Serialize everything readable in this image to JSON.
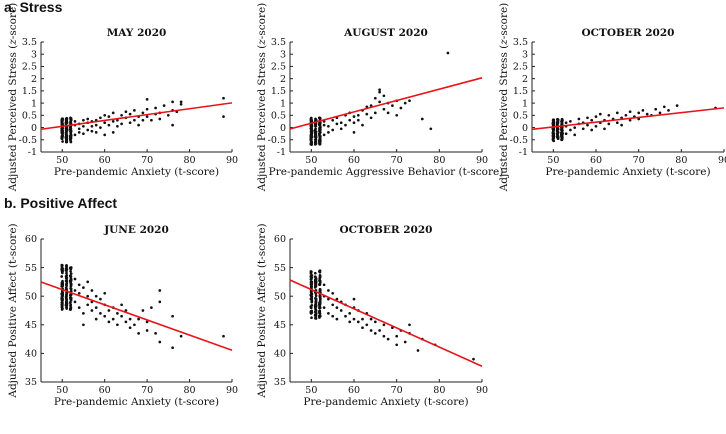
{
  "sections": {
    "a": "a. Stress",
    "b": "b. Positive Affect"
  },
  "chart_data": [
    {
      "type": "scatter",
      "section": "a",
      "title": "MAY 2020",
      "xlabel": "Pre-pandemic Anxiety (t-score)",
      "ylabel_pre": "Adjusted Perceived Stress (",
      "ylabel_em": "z",
      "ylabel_post": "-score)",
      "xlim": [
        45,
        90
      ],
      "ylim": [
        -1,
        3.5
      ],
      "xticks": [
        50,
        60,
        70,
        80,
        90
      ],
      "yticks": [
        -1,
        -0.5,
        0,
        0.5,
        1,
        1.5,
        2,
        2.5,
        3,
        3.5
      ],
      "fit": {
        "intercept": -1.15,
        "slope": 0.024
      },
      "cluster": {
        "xmin": 50,
        "xmax": 52,
        "ymin": -0.6,
        "ymax": 0.4,
        "n": 170
      },
      "points": [
        [
          53,
          -0.3
        ],
        [
          53,
          0.1
        ],
        [
          53,
          0.25
        ],
        [
          54,
          -0.2
        ],
        [
          54,
          0.15
        ],
        [
          54,
          -0.05
        ],
        [
          55,
          0.05
        ],
        [
          55,
          -0.25
        ],
        [
          55,
          0.3
        ],
        [
          56,
          0.2
        ],
        [
          56,
          -0.1
        ],
        [
          56,
          0.35
        ],
        [
          57,
          0.05
        ],
        [
          57,
          -0.15
        ],
        [
          57,
          0.25
        ],
        [
          58,
          0.1
        ],
        [
          58,
          0.3
        ],
        [
          58,
          -0.2
        ],
        [
          59,
          0.0
        ],
        [
          59,
          0.4
        ],
        [
          60,
          0.2
        ],
        [
          60,
          -0.3
        ],
        [
          60,
          0.5
        ],
        [
          61,
          0.1
        ],
        [
          61,
          0.45
        ],
        [
          62,
          0.25
        ],
        [
          62,
          0.6
        ],
        [
          62,
          -0.2
        ],
        [
          63,
          0.3
        ],
        [
          63,
          0.05
        ],
        [
          64,
          0.5
        ],
        [
          64,
          0.15
        ],
        [
          65,
          0.4
        ],
        [
          65,
          0.65
        ],
        [
          66,
          0.2
        ],
        [
          66,
          0.55
        ],
        [
          67,
          0.7
        ],
        [
          67,
          0.3
        ],
        [
          68,
          0.45
        ],
        [
          68,
          0.1
        ],
        [
          69,
          0.6
        ],
        [
          69,
          0.3
        ],
        [
          70,
          0.75
        ],
        [
          70,
          0.45
        ],
        [
          70,
          1.15
        ],
        [
          71,
          0.3
        ],
        [
          72,
          0.55
        ],
        [
          72,
          0.8
        ],
        [
          73,
          0.35
        ],
        [
          73,
          0.6
        ],
        [
          74,
          0.9
        ],
        [
          75,
          0.5
        ],
        [
          76,
          0.1
        ],
        [
          76,
          0.7
        ],
        [
          76,
          1.05
        ],
        [
          77,
          0.65
        ],
        [
          78,
          0.95
        ],
        [
          78,
          1.05
        ],
        [
          88,
          1.2
        ],
        [
          88,
          0.45
        ]
      ]
    },
    {
      "type": "scatter",
      "section": "a",
      "title": "AUGUST 2020",
      "xlabel": "Pre-pandemic Aggressive Behavior (t-score)",
      "ylabel_pre": "Adjusted Perceived Stress (",
      "ylabel_em": "z",
      "ylabel_post": "-score)",
      "xlim": [
        45,
        90
      ],
      "ylim": [
        -1,
        3.5
      ],
      "xticks": [
        50,
        60,
        70,
        80,
        90
      ],
      "yticks": [
        -1,
        -0.5,
        0,
        0.5,
        1,
        1.5,
        2,
        2.5,
        3,
        3.5
      ],
      "fit": {
        "intercept": -2.15,
        "slope": 0.0465
      },
      "cluster": {
        "xmin": 50,
        "xmax": 52,
        "ymin": -0.7,
        "ymax": 0.4,
        "n": 170
      },
      "points": [
        [
          53,
          -0.3
        ],
        [
          53,
          0.1
        ],
        [
          53,
          0.25
        ],
        [
          54,
          -0.2
        ],
        [
          54,
          0.05
        ],
        [
          55,
          0.3
        ],
        [
          55,
          -0.1
        ],
        [
          56,
          0.15
        ],
        [
          56,
          0.4
        ],
        [
          57,
          0.2
        ],
        [
          57,
          -0.05
        ],
        [
          58,
          0.5
        ],
        [
          58,
          0.1
        ],
        [
          59,
          0.3
        ],
        [
          59,
          0.6
        ],
        [
          60,
          0.2
        ],
        [
          60,
          0.45
        ],
        [
          60,
          -0.2
        ],
        [
          61,
          0.5
        ],
        [
          61,
          0.3
        ],
        [
          62,
          0.7
        ],
        [
          62,
          0.1
        ],
        [
          63,
          0.55
        ],
        [
          63,
          0.85
        ],
        [
          64,
          0.4
        ],
        [
          64,
          0.9
        ],
        [
          65,
          0.6
        ],
        [
          65,
          1.2
        ],
        [
          66,
          1.45
        ],
        [
          66,
          1.55
        ],
        [
          66,
          1.05
        ],
        [
          67,
          1.3
        ],
        [
          67,
          0.75
        ],
        [
          68,
          1.0
        ],
        [
          68,
          0.6
        ],
        [
          69,
          0.9
        ],
        [
          70,
          1.1
        ],
        [
          70,
          0.5
        ],
        [
          71,
          0.8
        ],
        [
          72,
          1.0
        ],
        [
          73,
          1.1
        ],
        [
          76,
          0.35
        ],
        [
          78,
          -0.05
        ],
        [
          82,
          3.05
        ]
      ]
    },
    {
      "type": "scatter",
      "section": "a",
      "title": "OCTOBER 2020",
      "xlabel": "Pre-pandemic Anxiety (t-score)",
      "ylabel_pre": "Adjusted Perceived Stress (",
      "ylabel_em": "z",
      "ylabel_post": "-score)",
      "xlim": [
        45,
        90
      ],
      "ylim": [
        -1,
        3.5
      ],
      "xticks": [
        50,
        60,
        70,
        80,
        90
      ],
      "yticks": [
        -1,
        -0.5,
        0,
        0.5,
        1,
        1.5,
        2,
        2.5,
        3,
        3.5
      ],
      "fit": {
        "intercept": -0.95,
        "slope": 0.0195
      },
      "cluster": {
        "xmin": 50,
        "xmax": 52,
        "ymin": -0.55,
        "ymax": 0.35,
        "n": 160
      },
      "points": [
        [
          53,
          -0.25
        ],
        [
          53,
          0.05
        ],
        [
          53,
          0.2
        ],
        [
          54,
          -0.1
        ],
        [
          54,
          0.25
        ],
        [
          55,
          0.0
        ],
        [
          55,
          -0.3
        ],
        [
          56,
          0.15
        ],
        [
          56,
          0.35
        ],
        [
          57,
          -0.05
        ],
        [
          57,
          0.2
        ],
        [
          58,
          0.1
        ],
        [
          58,
          0.4
        ],
        [
          59,
          -0.1
        ],
        [
          59,
          0.3
        ],
        [
          60,
          0.05
        ],
        [
          60,
          0.45
        ],
        [
          61,
          0.2
        ],
        [
          61,
          0.55
        ],
        [
          62,
          0.3
        ],
        [
          62,
          -0.05
        ],
        [
          63,
          0.5
        ],
        [
          63,
          0.15
        ],
        [
          64,
          0.35
        ],
        [
          65,
          0.2
        ],
        [
          65,
          0.6
        ],
        [
          66,
          0.1
        ],
        [
          66,
          0.4
        ],
        [
          67,
          0.5
        ],
        [
          68,
          0.3
        ],
        [
          68,
          0.65
        ],
        [
          69,
          0.45
        ],
        [
          70,
          0.35
        ],
        [
          70,
          0.6
        ],
        [
          71,
          0.7
        ],
        [
          72,
          0.55
        ],
        [
          73,
          0.5
        ],
        [
          74,
          0.75
        ],
        [
          75,
          0.6
        ],
        [
          76,
          0.85
        ],
        [
          77,
          0.7
        ],
        [
          79,
          0.9
        ],
        [
          88,
          0.8
        ]
      ]
    },
    {
      "type": "scatter",
      "section": "b",
      "title": "JUNE 2020",
      "xlabel": "Pre-pandemic Anxiety (t-score)",
      "ylabel_pre": "Adjusted Positive Affect (t-score)",
      "ylabel_em": "",
      "ylabel_post": "",
      "xlim": [
        45,
        90
      ],
      "ylim": [
        35,
        60
      ],
      "xticks": [
        50,
        60,
        70,
        80,
        90
      ],
      "yticks": [
        35,
        40,
        45,
        50,
        55,
        60
      ],
      "fit": {
        "intercept": 64.4,
        "slope": -0.265
      },
      "cluster": {
        "xmin": 50,
        "xmax": 52,
        "ymin": 47.5,
        "ymax": 55.5,
        "n": 170
      },
      "points": [
        [
          53,
          51
        ],
        [
          53,
          49
        ],
        [
          53,
          53
        ],
        [
          54,
          50.5
        ],
        [
          54,
          48
        ],
        [
          54,
          52
        ],
        [
          55,
          51.5
        ],
        [
          55,
          47
        ],
        [
          55,
          45
        ],
        [
          56,
          50
        ],
        [
          56,
          48.5
        ],
        [
          56,
          52.5
        ],
        [
          57,
          49
        ],
        [
          57,
          47.5
        ],
        [
          57,
          51
        ],
        [
          58,
          48
        ],
        [
          58,
          50
        ],
        [
          58,
          46
        ],
        [
          59,
          49.5
        ],
        [
          59,
          47
        ],
        [
          60,
          48.5
        ],
        [
          60,
          46.5
        ],
        [
          60,
          50.5
        ],
        [
          61,
          47.5
        ],
        [
          61,
          45.5
        ],
        [
          62,
          48
        ],
        [
          62,
          46
        ],
        [
          63,
          47
        ],
        [
          63,
          45
        ],
        [
          64,
          46.5
        ],
        [
          64,
          48.5
        ],
        [
          65,
          45.5
        ],
        [
          65,
          47.5
        ],
        [
          66,
          44.5
        ],
        [
          66,
          46
        ],
        [
          67,
          45
        ],
        [
          68,
          46
        ],
        [
          68,
          43.5
        ],
        [
          69,
          47.5
        ],
        [
          70,
          44
        ],
        [
          70,
          45.5
        ],
        [
          71,
          48
        ],
        [
          72,
          43.5
        ],
        [
          73,
          51
        ],
        [
          73,
          49
        ],
        [
          73,
          42
        ],
        [
          76,
          46.5
        ],
        [
          76,
          41
        ],
        [
          78,
          43
        ],
        [
          88,
          43
        ]
      ]
    },
    {
      "type": "scatter",
      "section": "b",
      "title": "OCTOBER 2020",
      "xlabel": "Pre-pandemic Anxiety (t-score)",
      "ylabel_pre": "Adjusted Positive Affect (t-score)",
      "ylabel_em": "",
      "ylabel_post": "",
      "xlim": [
        45,
        90
      ],
      "ylim": [
        35,
        60
      ],
      "xticks": [
        50,
        60,
        70,
        80,
        90
      ],
      "yticks": [
        35,
        40,
        45,
        50,
        55,
        60
      ],
      "fit": {
        "intercept": 67.9,
        "slope": -0.335
      },
      "cluster": {
        "xmin": 50,
        "xmax": 52,
        "ymin": 46,
        "ymax": 54.5,
        "n": 170
      },
      "points": [
        [
          53,
          50
        ],
        [
          53,
          48
        ],
        [
          53,
          52
        ],
        [
          54,
          49.5
        ],
        [
          54,
          47
        ],
        [
          54,
          51
        ],
        [
          55,
          48.5
        ],
        [
          55,
          46.5
        ],
        [
          55,
          50.5
        ],
        [
          56,
          48
        ],
        [
          56,
          46
        ],
        [
          56,
          49.5
        ],
        [
          57,
          47.5
        ],
        [
          57,
          49
        ],
        [
          58,
          46.5
        ],
        [
          58,
          48.5
        ],
        [
          59,
          47
        ],
        [
          59,
          45.5
        ],
        [
          60,
          48
        ],
        [
          60,
          46
        ],
        [
          60,
          49.5
        ],
        [
          61,
          45.5
        ],
        [
          61,
          47.5
        ],
        [
          62,
          46
        ],
        [
          62,
          44.5
        ],
        [
          63,
          45
        ],
        [
          63,
          47
        ],
        [
          64,
          44
        ],
        [
          64,
          46
        ],
        [
          65,
          43.5
        ],
        [
          65,
          45.5
        ],
        [
          66,
          44
        ],
        [
          67,
          43
        ],
        [
          67,
          45
        ],
        [
          68,
          42.5
        ],
        [
          69,
          44.5
        ],
        [
          70,
          43
        ],
        [
          70,
          41.5
        ],
        [
          71,
          44
        ],
        [
          72,
          42
        ],
        [
          73,
          45
        ],
        [
          73,
          43.5
        ],
        [
          75,
          40.5
        ],
        [
          76,
          42.5
        ],
        [
          79,
          41.5
        ],
        [
          88,
          39
        ]
      ]
    }
  ]
}
